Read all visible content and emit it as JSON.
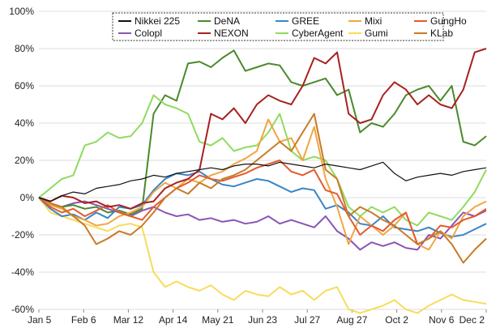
{
  "chart_data": {
    "type": "line",
    "title": "",
    "xlabel": "",
    "ylabel": "",
    "ylim": [
      -60,
      100
    ],
    "y_unit": "%",
    "yticks": [
      -60,
      -40,
      -20,
      0,
      20,
      40,
      60,
      80,
      100
    ],
    "x_tick_labels": [
      "Jan 5",
      "Feb 6",
      "Mar 12",
      "Apr 14",
      "May 21",
      "Jun 23",
      "Jul 27",
      "Aug 27",
      "Oct 2",
      "Nov 6",
      "Dec 2"
    ],
    "grid": "horizontal",
    "legend_position": "top-center",
    "series": [
      {
        "name": "Nikkei 225",
        "color": "#111111",
        "values": [
          0,
          -2,
          1,
          3,
          2,
          5,
          6,
          7,
          9,
          10,
          12,
          11,
          13,
          14,
          15,
          16,
          15,
          17,
          18,
          18,
          17,
          19,
          18,
          17,
          16,
          18,
          17,
          16,
          15,
          17,
          19,
          13,
          9,
          11,
          12,
          13,
          12,
          14,
          15,
          16
        ]
      },
      {
        "name": "DeNA",
        "color": "#4a8a2a",
        "values": [
          0,
          -3,
          -5,
          -4,
          -6,
          -5,
          -8,
          -7,
          -9,
          -6,
          45,
          55,
          52,
          72,
          73,
          70,
          75,
          79,
          68,
          70,
          72,
          71,
          62,
          60,
          62,
          64,
          55,
          58,
          35,
          40,
          38,
          45,
          55,
          58,
          60,
          52,
          60,
          30,
          28,
          33
        ]
      },
      {
        "name": "GREE",
        "color": "#3a85c6",
        "values": [
          0,
          -6,
          -10,
          -9,
          -12,
          -8,
          -11,
          -5,
          -6,
          -4,
          4,
          10,
          13,
          12,
          14,
          10,
          7,
          6,
          8,
          10,
          9,
          6,
          3,
          5,
          4,
          -6,
          -4,
          -8,
          -14,
          -15,
          -10,
          -16,
          -17,
          -18,
          -16,
          -19,
          -21,
          -20,
          -17,
          -14
        ]
      },
      {
        "name": "Mixi",
        "color": "#f0a642",
        "values": [
          0,
          -4,
          -6,
          -10,
          -12,
          -15,
          -14,
          -10,
          -8,
          -5,
          3,
          8,
          5,
          10,
          8,
          12,
          14,
          18,
          21,
          25,
          42,
          30,
          32,
          20,
          38,
          10,
          -5,
          -25,
          -10,
          -15,
          -20,
          -15,
          -8,
          -25,
          -28,
          -18,
          -22,
          -10,
          -5,
          -2
        ]
      },
      {
        "name": "GungHo",
        "color": "#e45a2c",
        "values": [
          0,
          -5,
          -8,
          -6,
          -10,
          -7,
          -4,
          -8,
          -10,
          -12,
          -5,
          0,
          5,
          8,
          12,
          10,
          9,
          11,
          13,
          16,
          18,
          20,
          14,
          12,
          15,
          4,
          2,
          -10,
          -20,
          -15,
          -18,
          -12,
          -8,
          -25,
          -22,
          -15,
          -16,
          -12,
          -10,
          -6
        ]
      },
      {
        "name": "Colopl",
        "color": "#8a55b5",
        "values": [
          0,
          -4,
          -5,
          -3,
          -2,
          -4,
          -6,
          -8,
          -10,
          -7,
          -5,
          -8,
          -10,
          -9,
          -12,
          -11,
          -13,
          -12,
          -14,
          -13,
          -10,
          -14,
          -12,
          -14,
          -16,
          -10,
          -18,
          -22,
          -28,
          -24,
          -26,
          -24,
          -27,
          -28,
          -20,
          -22,
          -15,
          -8,
          -10,
          -7
        ]
      },
      {
        "name": "NEXON",
        "color": "#a82020",
        "values": [
          0,
          -2,
          1,
          0,
          -3,
          -2,
          -5,
          -4,
          -6,
          -3,
          -2,
          5,
          8,
          10,
          15,
          45,
          42,
          48,
          40,
          50,
          55,
          52,
          50,
          60,
          75,
          72,
          78,
          45,
          40,
          42,
          55,
          62,
          58,
          50,
          55,
          50,
          48,
          58,
          78,
          80
        ]
      },
      {
        "name": "CyberAgent",
        "color": "#8fdb5f",
        "values": [
          0,
          5,
          10,
          12,
          28,
          30,
          35,
          32,
          33,
          40,
          55,
          50,
          48,
          45,
          30,
          28,
          32,
          25,
          27,
          28,
          35,
          45,
          25,
          20,
          22,
          20,
          10,
          -5,
          -10,
          -5,
          -8,
          -5,
          -12,
          -15,
          -8,
          -10,
          -12,
          -5,
          3,
          15
        ]
      },
      {
        "name": "Gumi",
        "color": "#f7dc5a",
        "values": [
          0,
          -8,
          -10,
          -12,
          -14,
          -16,
          -18,
          -15,
          -14,
          -16,
          -40,
          -48,
          -45,
          -48,
          -50,
          -47,
          -52,
          -55,
          -50,
          -52,
          -53,
          -48,
          -52,
          -50,
          -55,
          -50,
          -48,
          -60,
          -62,
          -60,
          -58,
          -55,
          -60,
          -62,
          -58,
          -55,
          -52,
          -55,
          -56,
          -57
        ]
      },
      {
        "name": "KLab",
        "color": "#c87a27",
        "values": [
          0,
          -3,
          -5,
          -10,
          -15,
          -25,
          -22,
          -18,
          -20,
          -15,
          -8,
          0,
          5,
          2,
          8,
          5,
          10,
          12,
          15,
          20,
          25,
          30,
          25,
          35,
          45,
          15,
          10,
          -10,
          -5,
          -8,
          -12,
          -15,
          -20,
          -25,
          -22,
          -18,
          -25,
          -35,
          -28,
          -22
        ]
      }
    ]
  }
}
